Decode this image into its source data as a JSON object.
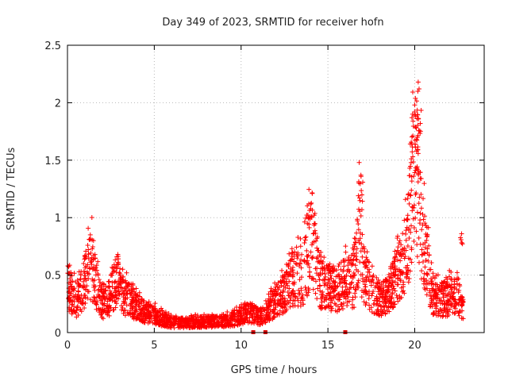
{
  "chart_data": {
    "type": "scatter",
    "title": "Day 349 of 2023, SRMTID for receiver hofn",
    "xlabel": "GPS time / hours",
    "ylabel": "SRMTID / TECUs",
    "xlim": [
      0,
      24
    ],
    "ylim": [
      0,
      2.5
    ],
    "xticks": [
      0,
      5,
      10,
      15,
      20
    ],
    "xtick_labels": [
      "0",
      "5",
      "10",
      "15",
      "20"
    ],
    "yticks": [
      0,
      0.5,
      1,
      1.5,
      2,
      2.5
    ],
    "ytick_labels": [
      "0",
      "0.5",
      "1",
      "1.5",
      "2",
      "2.5"
    ],
    "grid": true,
    "marker": "+",
    "color": "#ff0000",
    "series": [
      {
        "name": "SRMTID",
        "profile": [
          {
            "x": 0.0,
            "y": 0.42
          },
          {
            "x": 0.3,
            "y": 0.35
          },
          {
            "x": 0.6,
            "y": 0.28
          },
          {
            "x": 0.9,
            "y": 0.42
          },
          {
            "x": 1.2,
            "y": 0.55
          },
          {
            "x": 1.4,
            "y": 0.62
          },
          {
            "x": 1.7,
            "y": 0.4
          },
          {
            "x": 2.0,
            "y": 0.25
          },
          {
            "x": 2.4,
            "y": 0.32
          },
          {
            "x": 2.8,
            "y": 0.48
          },
          {
            "x": 3.1,
            "y": 0.35
          },
          {
            "x": 3.5,
            "y": 0.3
          },
          {
            "x": 4.0,
            "y": 0.24
          },
          {
            "x": 4.5,
            "y": 0.18
          },
          {
            "x": 5.0,
            "y": 0.16
          },
          {
            "x": 5.5,
            "y": 0.12
          },
          {
            "x": 6.0,
            "y": 0.09
          },
          {
            "x": 7.0,
            "y": 0.09
          },
          {
            "x": 8.0,
            "y": 0.1
          },
          {
            "x": 9.0,
            "y": 0.1
          },
          {
            "x": 9.5,
            "y": 0.12
          },
          {
            "x": 10.0,
            "y": 0.15
          },
          {
            "x": 10.5,
            "y": 0.18
          },
          {
            "x": 11.0,
            "y": 0.14
          },
          {
            "x": 11.5,
            "y": 0.18
          },
          {
            "x": 12.0,
            "y": 0.3
          },
          {
            "x": 12.5,
            "y": 0.35
          },
          {
            "x": 13.0,
            "y": 0.5
          },
          {
            "x": 13.5,
            "y": 0.48
          },
          {
            "x": 13.8,
            "y": 0.7
          },
          {
            "x": 14.0,
            "y": 0.82
          },
          {
            "x": 14.3,
            "y": 0.65
          },
          {
            "x": 14.6,
            "y": 0.45
          },
          {
            "x": 15.0,
            "y": 0.42
          },
          {
            "x": 15.5,
            "y": 0.4
          },
          {
            "x": 16.0,
            "y": 0.45
          },
          {
            "x": 16.5,
            "y": 0.48
          },
          {
            "x": 16.8,
            "y": 0.9
          },
          {
            "x": 17.0,
            "y": 0.55
          },
          {
            "x": 17.5,
            "y": 0.38
          },
          {
            "x": 18.0,
            "y": 0.3
          },
          {
            "x": 18.5,
            "y": 0.35
          },
          {
            "x": 19.0,
            "y": 0.5
          },
          {
            "x": 19.5,
            "y": 0.72
          },
          {
            "x": 19.8,
            "y": 1.1
          },
          {
            "x": 20.0,
            "y": 1.55
          },
          {
            "x": 20.2,
            "y": 1.2
          },
          {
            "x": 20.5,
            "y": 0.85
          },
          {
            "x": 20.8,
            "y": 0.55
          },
          {
            "x": 21.0,
            "y": 0.35
          },
          {
            "x": 21.5,
            "y": 0.3
          },
          {
            "x": 22.0,
            "y": 0.32
          },
          {
            "x": 22.5,
            "y": 0.35
          },
          {
            "x": 22.8,
            "y": 0.2
          }
        ],
        "peaks": [
          {
            "x": 1.5,
            "y": 0.8
          },
          {
            "x": 2.9,
            "y": 0.68
          },
          {
            "x": 13.9,
            "y": 1.12
          },
          {
            "x": 14.1,
            "y": 1.21
          },
          {
            "x": 16.8,
            "y": 1.48
          },
          {
            "x": 16.9,
            "y": 1.37
          },
          {
            "x": 19.6,
            "y": 1.02
          },
          {
            "x": 19.9,
            "y": 1.84
          },
          {
            "x": 20.0,
            "y": 1.98
          },
          {
            "x": 20.1,
            "y": 1.68
          },
          {
            "x": 20.2,
            "y": 2.18
          },
          {
            "x": 20.25,
            "y": 2.12
          },
          {
            "x": 22.7,
            "y": 0.86
          }
        ]
      }
    ],
    "gap_markers_x": [
      10.7,
      11.4,
      16.0
    ]
  }
}
